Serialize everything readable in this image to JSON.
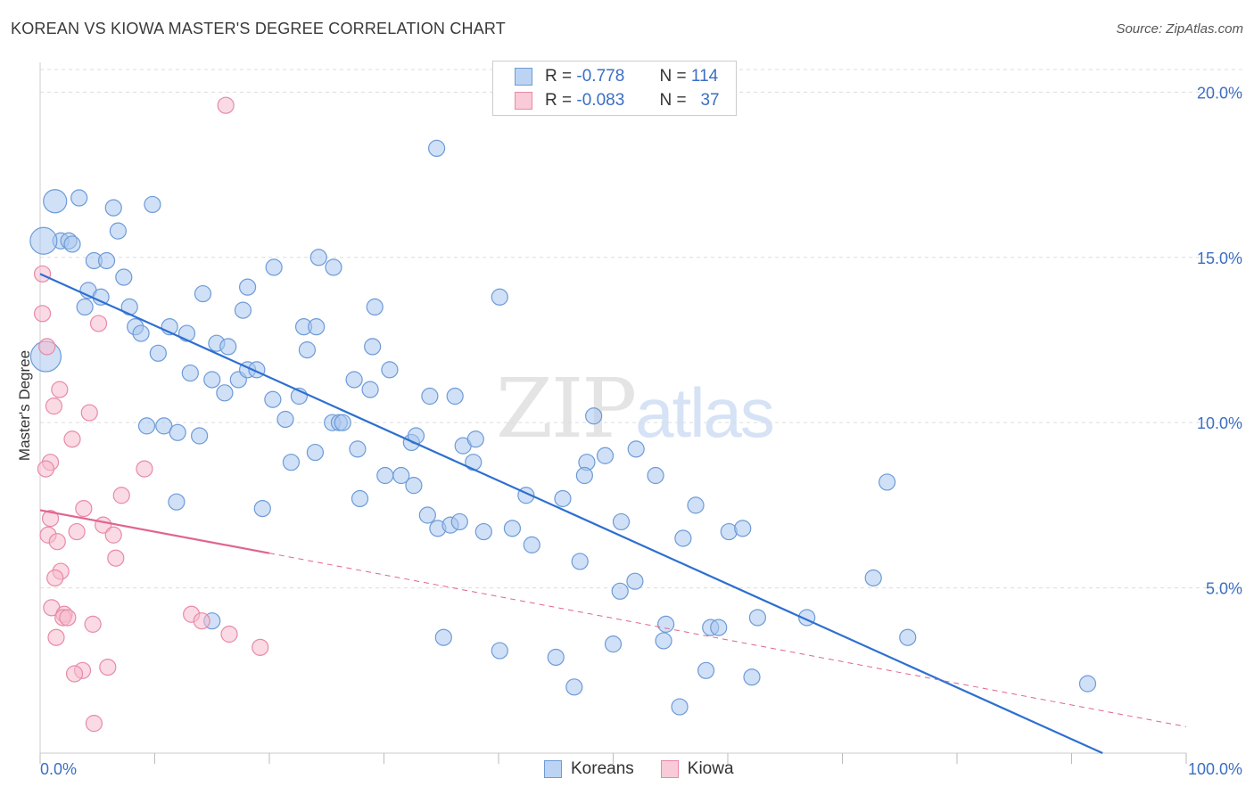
{
  "title": "KOREAN VS KIOWA MASTER'S DEGREE CORRELATION CHART",
  "source": "Source: ZipAtlas.com",
  "watermark": {
    "zip": "ZIP",
    "atlas": "atlas"
  },
  "legend": {
    "rows": [
      {
        "r_label": "R =",
        "r_value": "-0.778",
        "n_label": "N =",
        "n_value": "114"
      },
      {
        "r_label": "R =",
        "r_value": "-0.083",
        "n_label": "N =",
        "n_value": "37"
      }
    ]
  },
  "colors": {
    "koreans_fill": "#a9c6ef",
    "koreans_stroke": "#6c9bd8",
    "koreans_line": "#2d6fd1",
    "kiowa_fill": "#f6bccd",
    "kiowa_stroke": "#e88aa6",
    "kiowa_line": "#e0658f",
    "axis_label": "#3a6fc4",
    "grid": "#dddddd"
  },
  "chart_data": {
    "type": "scatter",
    "xlabel": "",
    "ylabel": "Master's Degree",
    "xlim": [
      0,
      100
    ],
    "ylim": [
      0,
      20.9
    ],
    "x_tick_labels": [
      "0.0%",
      "100.0%"
    ],
    "y_ticks": [
      5,
      10,
      15,
      20
    ],
    "y_tick_labels": [
      "5.0%",
      "10.0%",
      "15.0%",
      "20.0%"
    ],
    "grid": true,
    "legend_position": "bottom-center",
    "series": [
      {
        "name": "Koreans",
        "r": -0.778,
        "n": 114,
        "trend": {
          "x": [
            0,
            92.7
          ],
          "y": [
            14.5,
            0
          ],
          "style": "solid"
        },
        "points": [
          [
            1.3,
            16.7
          ],
          [
            3.4,
            16.8
          ],
          [
            6.4,
            16.5
          ],
          [
            9.8,
            16.6
          ],
          [
            1.8,
            15.5
          ],
          [
            2.5,
            15.5
          ],
          [
            2.8,
            15.4
          ],
          [
            6.8,
            15.8
          ],
          [
            4.7,
            14.9
          ],
          [
            5.8,
            14.9
          ],
          [
            7.3,
            14.4
          ],
          [
            4.2,
            14.0
          ],
          [
            5.3,
            13.8
          ],
          [
            3.9,
            13.5
          ],
          [
            7.8,
            13.5
          ],
          [
            14.2,
            13.9
          ],
          [
            18.1,
            14.1
          ],
          [
            20.4,
            14.7
          ],
          [
            24.3,
            15.0
          ],
          [
            25.6,
            14.7
          ],
          [
            29.2,
            13.5
          ],
          [
            40.1,
            13.8
          ],
          [
            34.6,
            18.3
          ],
          [
            17.7,
            13.4
          ],
          [
            8.3,
            12.9
          ],
          [
            8.8,
            12.7
          ],
          [
            11.3,
            12.9
          ],
          [
            12.8,
            12.7
          ],
          [
            15.4,
            12.4
          ],
          [
            16.4,
            12.3
          ],
          [
            23.0,
            12.9
          ],
          [
            24.1,
            12.9
          ],
          [
            10.3,
            12.1
          ],
          [
            23.3,
            12.2
          ],
          [
            29.0,
            12.3
          ],
          [
            13.1,
            11.5
          ],
          [
            15.0,
            11.3
          ],
          [
            16.1,
            10.9
          ],
          [
            17.3,
            11.3
          ],
          [
            18.1,
            11.6
          ],
          [
            18.9,
            11.6
          ],
          [
            27.4,
            11.3
          ],
          [
            28.8,
            11.0
          ],
          [
            30.5,
            11.6
          ],
          [
            20.3,
            10.7
          ],
          [
            22.6,
            10.8
          ],
          [
            21.4,
            10.1
          ],
          [
            34.0,
            10.8
          ],
          [
            36.2,
            10.8
          ],
          [
            9.3,
            9.9
          ],
          [
            10.8,
            9.9
          ],
          [
            12.0,
            9.7
          ],
          [
            13.9,
            9.6
          ],
          [
            25.5,
            10.0
          ],
          [
            26.1,
            10.0
          ],
          [
            26.4,
            10.0
          ],
          [
            32.4,
            9.4
          ],
          [
            32.8,
            9.6
          ],
          [
            24.0,
            9.1
          ],
          [
            27.7,
            9.2
          ],
          [
            36.9,
            9.3
          ],
          [
            38.0,
            9.5
          ],
          [
            48.3,
            10.2
          ],
          [
            49.3,
            9.0
          ],
          [
            52.0,
            9.2
          ],
          [
            21.9,
            8.8
          ],
          [
            30.1,
            8.4
          ],
          [
            31.5,
            8.4
          ],
          [
            37.8,
            8.8
          ],
          [
            47.7,
            8.8
          ],
          [
            47.5,
            8.4
          ],
          [
            53.7,
            8.4
          ],
          [
            73.9,
            8.2
          ],
          [
            11.9,
            7.6
          ],
          [
            19.4,
            7.4
          ],
          [
            27.9,
            7.7
          ],
          [
            32.6,
            8.1
          ],
          [
            33.8,
            7.2
          ],
          [
            42.4,
            7.8
          ],
          [
            45.6,
            7.7
          ],
          [
            57.2,
            7.5
          ],
          [
            34.7,
            6.8
          ],
          [
            35.8,
            6.9
          ],
          [
            36.6,
            7.0
          ],
          [
            38.7,
            6.7
          ],
          [
            41.2,
            6.8
          ],
          [
            42.9,
            6.3
          ],
          [
            50.7,
            7.0
          ],
          [
            56.1,
            6.5
          ],
          [
            60.1,
            6.7
          ],
          [
            61.3,
            6.8
          ],
          [
            47.1,
            5.8
          ],
          [
            51.9,
            5.2
          ],
          [
            50.6,
            4.9
          ],
          [
            72.7,
            5.3
          ],
          [
            15.0,
            4.0
          ],
          [
            35.2,
            3.5
          ],
          [
            40.1,
            3.1
          ],
          [
            45.0,
            2.9
          ],
          [
            50.0,
            3.3
          ],
          [
            54.6,
            3.9
          ],
          [
            54.4,
            3.4
          ],
          [
            58.5,
            3.8
          ],
          [
            59.2,
            3.8
          ],
          [
            62.6,
            4.1
          ],
          [
            66.9,
            4.1
          ],
          [
            75.7,
            3.5
          ],
          [
            58.1,
            2.5
          ],
          [
            62.1,
            2.3
          ],
          [
            46.6,
            2.0
          ],
          [
            55.8,
            1.4
          ],
          [
            91.4,
            2.1
          ],
          [
            0.5,
            12.0
          ],
          [
            0.3,
            15.5
          ]
        ]
      },
      {
        "name": "Kiowa",
        "r": -0.083,
        "n": 37,
        "trend": {
          "x": [
            0,
            20
          ],
          "y": [
            7.35,
            6.05
          ],
          "dash_x": [
            20,
            100
          ],
          "dash_y": [
            6.05,
            0.8
          ],
          "style": "solid-then-dashed"
        },
        "points": [
          [
            16.2,
            19.6
          ],
          [
            0.2,
            14.5
          ],
          [
            0.2,
            13.3
          ],
          [
            5.1,
            13.0
          ],
          [
            0.6,
            12.3
          ],
          [
            1.7,
            11.0
          ],
          [
            1.2,
            10.5
          ],
          [
            4.3,
            10.3
          ],
          [
            2.8,
            9.5
          ],
          [
            0.9,
            8.8
          ],
          [
            0.5,
            8.6
          ],
          [
            9.1,
            8.6
          ],
          [
            7.1,
            7.8
          ],
          [
            3.8,
            7.4
          ],
          [
            0.9,
            7.1
          ],
          [
            5.5,
            6.9
          ],
          [
            3.2,
            6.7
          ],
          [
            0.7,
            6.6
          ],
          [
            1.5,
            6.4
          ],
          [
            6.4,
            6.6
          ],
          [
            6.6,
            5.9
          ],
          [
            1.8,
            5.5
          ],
          [
            1.3,
            5.3
          ],
          [
            1.0,
            4.4
          ],
          [
            2.1,
            4.2
          ],
          [
            2.0,
            4.1
          ],
          [
            2.4,
            4.1
          ],
          [
            4.6,
            3.9
          ],
          [
            13.2,
            4.2
          ],
          [
            14.1,
            4.0
          ],
          [
            16.5,
            3.6
          ],
          [
            19.2,
            3.2
          ],
          [
            1.4,
            3.5
          ],
          [
            3.7,
            2.5
          ],
          [
            3.0,
            2.4
          ],
          [
            5.9,
            2.6
          ],
          [
            4.7,
            0.9
          ]
        ]
      }
    ]
  }
}
